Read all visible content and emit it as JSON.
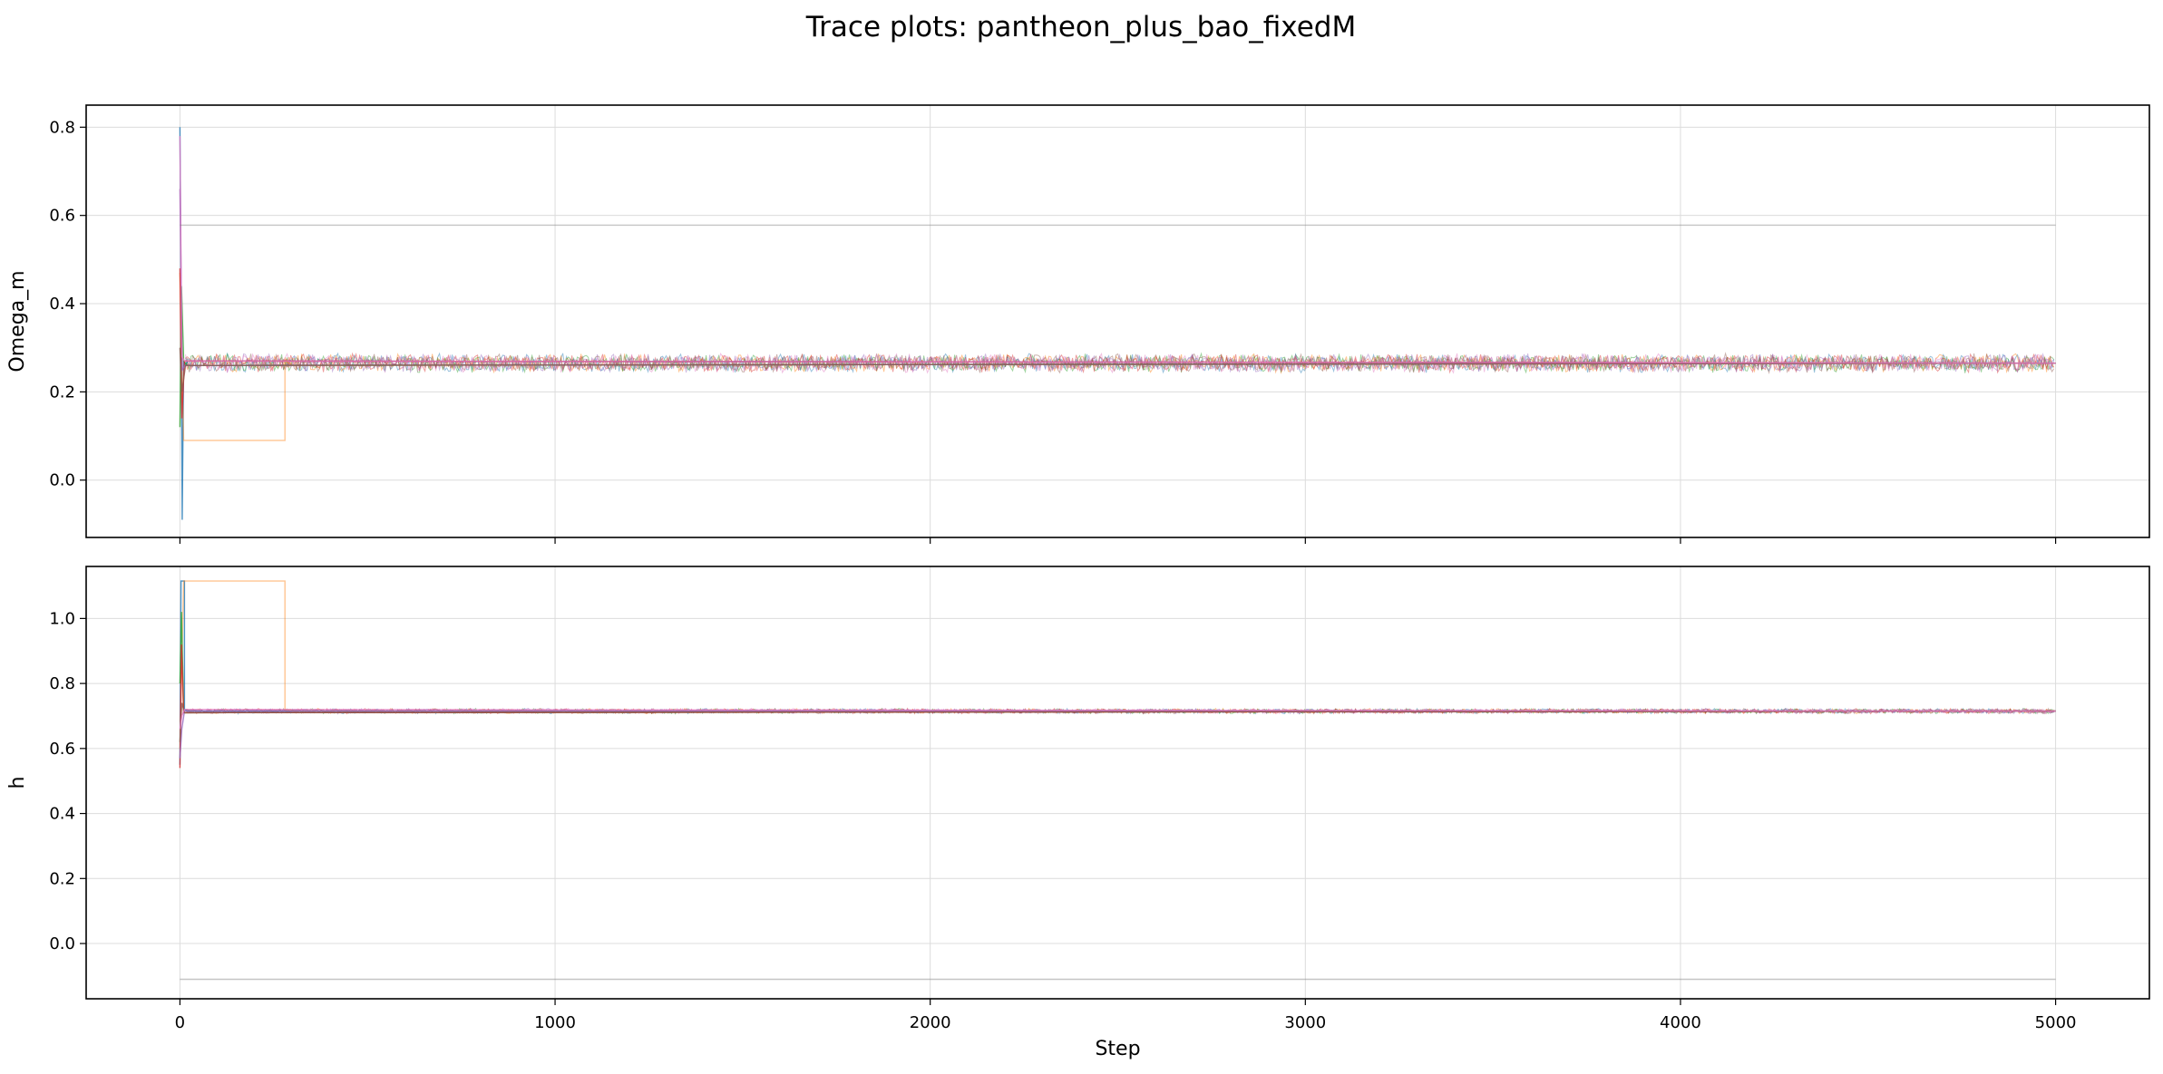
{
  "figure": {
    "title": "Trace plots: pantheon_plus_bao_fixedM"
  },
  "chart_data": [
    {
      "type": "line",
      "title": "",
      "xlabel": "",
      "ylabel": "Omega_m",
      "xlim": [
        -250,
        5250
      ],
      "ylim": [
        -0.13,
        0.85
      ],
      "xticks": [
        0,
        1000,
        2000,
        3000,
        4000,
        5000
      ],
      "xtick_labels_shown": false,
      "yticks": [
        0.0,
        0.2,
        0.4,
        0.6,
        0.8
      ],
      "ytick_labels": [
        "0.0",
        "0.2",
        "0.4",
        "0.6",
        "0.8"
      ],
      "grid": true,
      "legend": "none",
      "series_colors": [
        "#1f77b4",
        "#ff7f0e",
        "#2ca02c",
        "#d62728",
        "#9467bd",
        "#8c564b",
        "#e377c2",
        "#7f7f7f"
      ],
      "steady_state": {
        "center": 0.265,
        "band": [
          0.245,
          0.29
        ]
      },
      "series": [
        {
          "x": [
            0,
            3,
            6,
            10,
            15,
            20,
            5000
          ],
          "y": [
            0.8,
            0.45,
            -0.09,
            0.27,
            0.26,
            0.27,
            0.265
          ]
        },
        {
          "x": [
            0,
            10,
            10,
            280,
            280,
            300,
            5000
          ],
          "y": [
            0.47,
            0.09,
            0.09,
            0.09,
            0.27,
            0.26,
            0.265
          ]
        },
        {
          "x": [
            0,
            4,
            10,
            20,
            5000
          ],
          "y": [
            0.12,
            0.44,
            0.27,
            0.26,
            0.265
          ]
        },
        {
          "x": [
            0,
            5,
            12,
            20,
            5000
          ],
          "y": [
            0.48,
            0.14,
            0.27,
            0.27,
            0.265
          ]
        },
        {
          "x": [
            0,
            6,
            14,
            5000
          ],
          "y": [
            0.66,
            0.25,
            0.26,
            0.265
          ]
        },
        {
          "x": [
            0,
            5,
            15,
            5000
          ],
          "y": [
            0.3,
            0.2,
            0.26,
            0.265
          ]
        },
        {
          "x": [
            0,
            5,
            12,
            5000
          ],
          "y": [
            0.78,
            0.28,
            0.27,
            0.265
          ]
        },
        {
          "x": [
            0,
            5000
          ],
          "y": [
            0.578,
            0.578
          ]
        }
      ]
    },
    {
      "type": "line",
      "title": "",
      "xlabel": "Step",
      "ylabel": "h",
      "xlim": [
        -250,
        5250
      ],
      "ylim": [
        -0.17,
        1.16
      ],
      "xticks": [
        0,
        1000,
        2000,
        3000,
        4000,
        5000
      ],
      "xtick_labels": [
        "0",
        "1000",
        "2000",
        "3000",
        "4000",
        "5000"
      ],
      "yticks": [
        0.0,
        0.2,
        0.4,
        0.6,
        0.8,
        1.0
      ],
      "ytick_labels": [
        "0.0",
        "0.2",
        "0.4",
        "0.6",
        "0.8",
        "1.0"
      ],
      "grid": true,
      "legend": "none",
      "series_colors": [
        "#1f77b4",
        "#ff7f0e",
        "#2ca02c",
        "#d62728",
        "#9467bd",
        "#8c564b",
        "#e377c2",
        "#7f7f7f"
      ],
      "steady_state": {
        "center": 0.715,
        "band": [
          0.705,
          0.722
        ]
      },
      "series": [
        {
          "x": [
            0,
            3,
            3,
            12,
            12,
            20,
            5000
          ],
          "y": [
            0.55,
            1.115,
            1.115,
            1.115,
            0.72,
            0.715,
            0.715
          ]
        },
        {
          "x": [
            0,
            10,
            10,
            280,
            280,
            300,
            5000
          ],
          "y": [
            0.6,
            1.115,
            1.115,
            1.115,
            0.72,
            0.715,
            0.715
          ]
        },
        {
          "x": [
            0,
            4,
            10,
            5000
          ],
          "y": [
            0.8,
            1.02,
            0.71,
            0.715
          ]
        },
        {
          "x": [
            0,
            4,
            10,
            5000
          ],
          "y": [
            0.54,
            0.92,
            0.71,
            0.715
          ]
        },
        {
          "x": [
            0,
            5,
            12,
            5000
          ],
          "y": [
            0.57,
            0.66,
            0.715,
            0.715
          ]
        },
        {
          "x": [
            0,
            5,
            12,
            5000
          ],
          "y": [
            0.62,
            0.74,
            0.71,
            0.715
          ]
        },
        {
          "x": [
            0,
            5,
            12,
            5000
          ],
          "y": [
            0.66,
            0.7,
            0.72,
            0.715
          ]
        },
        {
          "x": [
            0,
            5000
          ],
          "y": [
            -0.11,
            -0.11
          ]
        }
      ]
    }
  ]
}
